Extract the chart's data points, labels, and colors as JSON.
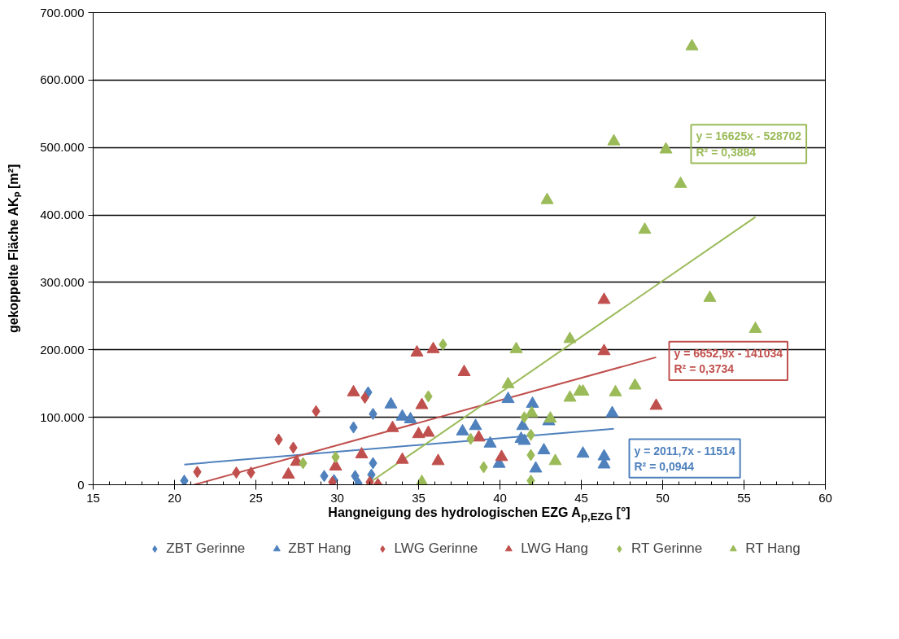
{
  "chart_data": {
    "type": "scatter",
    "xlabel": "Hangneigung des hydrologischen EZG A$_{p,EZG}$ [°]",
    "ylabel": "gekoppelte Fläche AKₚ [m²]",
    "xlim": [
      15,
      60
    ],
    "xticks": [
      15,
      20,
      25,
      30,
      35,
      40,
      45,
      50,
      55,
      60
    ],
    "ylim": [
      0,
      700000
    ],
    "yticks": [
      {
        "value": 0,
        "label": "0"
      },
      {
        "value": 100000,
        "label": "100.000"
      },
      {
        "value": 200000,
        "label": "200.000"
      },
      {
        "value": 300000,
        "label": "300.000"
      },
      {
        "value": 400000,
        "label": "400.000"
      },
      {
        "value": 500000,
        "label": "500.000"
      },
      {
        "value": 600000,
        "label": "600.000"
      },
      {
        "value": 700000,
        "label": "700.000"
      }
    ],
    "grid": "y",
    "legend": "bottom",
    "series": [
      {
        "name": "ZBT Gerinne",
        "color": "#4f81bd",
        "marker": "diamond",
        "x": [
          20.6,
          29.2,
          29.8,
          31.0,
          31.1,
          31.3,
          31.9,
          32.1,
          32.2,
          32.2
        ],
        "values": [
          6000,
          13000,
          7000,
          85000,
          13000,
          2000,
          137000,
          15000,
          32000,
          105000
        ]
      },
      {
        "name": "ZBT Hang",
        "color": "#4f81bd",
        "marker": "triangle",
        "x": [
          33.3,
          34.0,
          34.5,
          37.7,
          38.5,
          39.4,
          39.95,
          40.5,
          42.0,
          41.4,
          41.3,
          41.5,
          42.2,
          42.7,
          43.0,
          45.1,
          46.4,
          46.4,
          46.9
        ],
        "values": [
          119000,
          101000,
          97000,
          79000,
          87000,
          61000,
          31000,
          127000,
          120000,
          87000,
          68000,
          65000,
          24000,
          51000,
          94000,
          46000,
          42000,
          30000,
          106000
        ]
      },
      {
        "name": "LWG Gerinne",
        "color": "#c0504d",
        "marker": "diamond",
        "x": [
          21.4,
          23.8,
          24.7,
          26.4,
          27.3,
          28.7,
          29.7,
          31.7,
          32.0,
          32.5
        ],
        "values": [
          19000,
          18000,
          18000,
          67000,
          55000,
          109000,
          4000,
          129000,
          4000,
          1000
        ]
      },
      {
        "name": "LWG Hang",
        "color": "#c0504d",
        "marker": "triangle",
        "x": [
          27.0,
          27.5,
          29.9,
          31.0,
          31.5,
          33.4,
          34.0,
          34.9,
          35.2,
          35.0,
          35.9,
          35.6,
          36.2,
          37.8,
          38.7,
          40.1,
          46.4,
          46.4,
          49.6
        ],
        "values": [
          15000,
          34000,
          27000,
          137000,
          45000,
          84000,
          37000,
          196000,
          118000,
          75000,
          201000,
          77000,
          35000,
          167000,
          70000,
          41000,
          274000,
          198000,
          117000
        ]
      },
      {
        "name": "RT Gerinne",
        "color": "#9bbb59",
        "marker": "diamond",
        "x": [
          27.9,
          29.9,
          36.5,
          35.6,
          38.2,
          39.0,
          41.5,
          41.9,
          41.9,
          41.9
        ],
        "values": [
          32000,
          41000,
          208000,
          131000,
          68000,
          26000,
          100000,
          74000,
          44000,
          6000
        ]
      },
      {
        "name": "RT Hang",
        "color": "#9bbb59",
        "marker": "triangle",
        "x": [
          35.2,
          41.0,
          40.5,
          41.95,
          43.1,
          43.4,
          44.3,
          44.3,
          44.9,
          45.1,
          47.1,
          48.3,
          52.9,
          55.7,
          51.8,
          47.0,
          50.2,
          42.9,
          51.1,
          48.9
        ],
        "values": [
          4000,
          201000,
          149000,
          106000,
          98000,
          35000,
          216000,
          129000,
          138000,
          138000,
          137000,
          147000,
          277000,
          231000,
          650000,
          509000,
          497000,
          422000,
          446000,
          378000
        ]
      },
      {
        "name": "y = 2011,7x - 11514\nR² = 0,0944",
        "type": "line",
        "color": "#4f81bd",
        "x": [
          20.6,
          47.0
        ],
        "values": [
          30000,
          83000
        ]
      },
      {
        "name": "y = 6652,9x - 141034\nR² = 0,3734",
        "type": "line",
        "color": "#c0504d",
        "x": [
          21.2,
          49.6
        ],
        "values": [
          0,
          189000
        ]
      },
      {
        "name": "y = 16625x - 528702\nR² = 0,3884",
        "type": "line",
        "color": "#9bbb59",
        "x": [
          31.8,
          55.7
        ],
        "values": [
          0,
          397000
        ]
      }
    ]
  }
}
